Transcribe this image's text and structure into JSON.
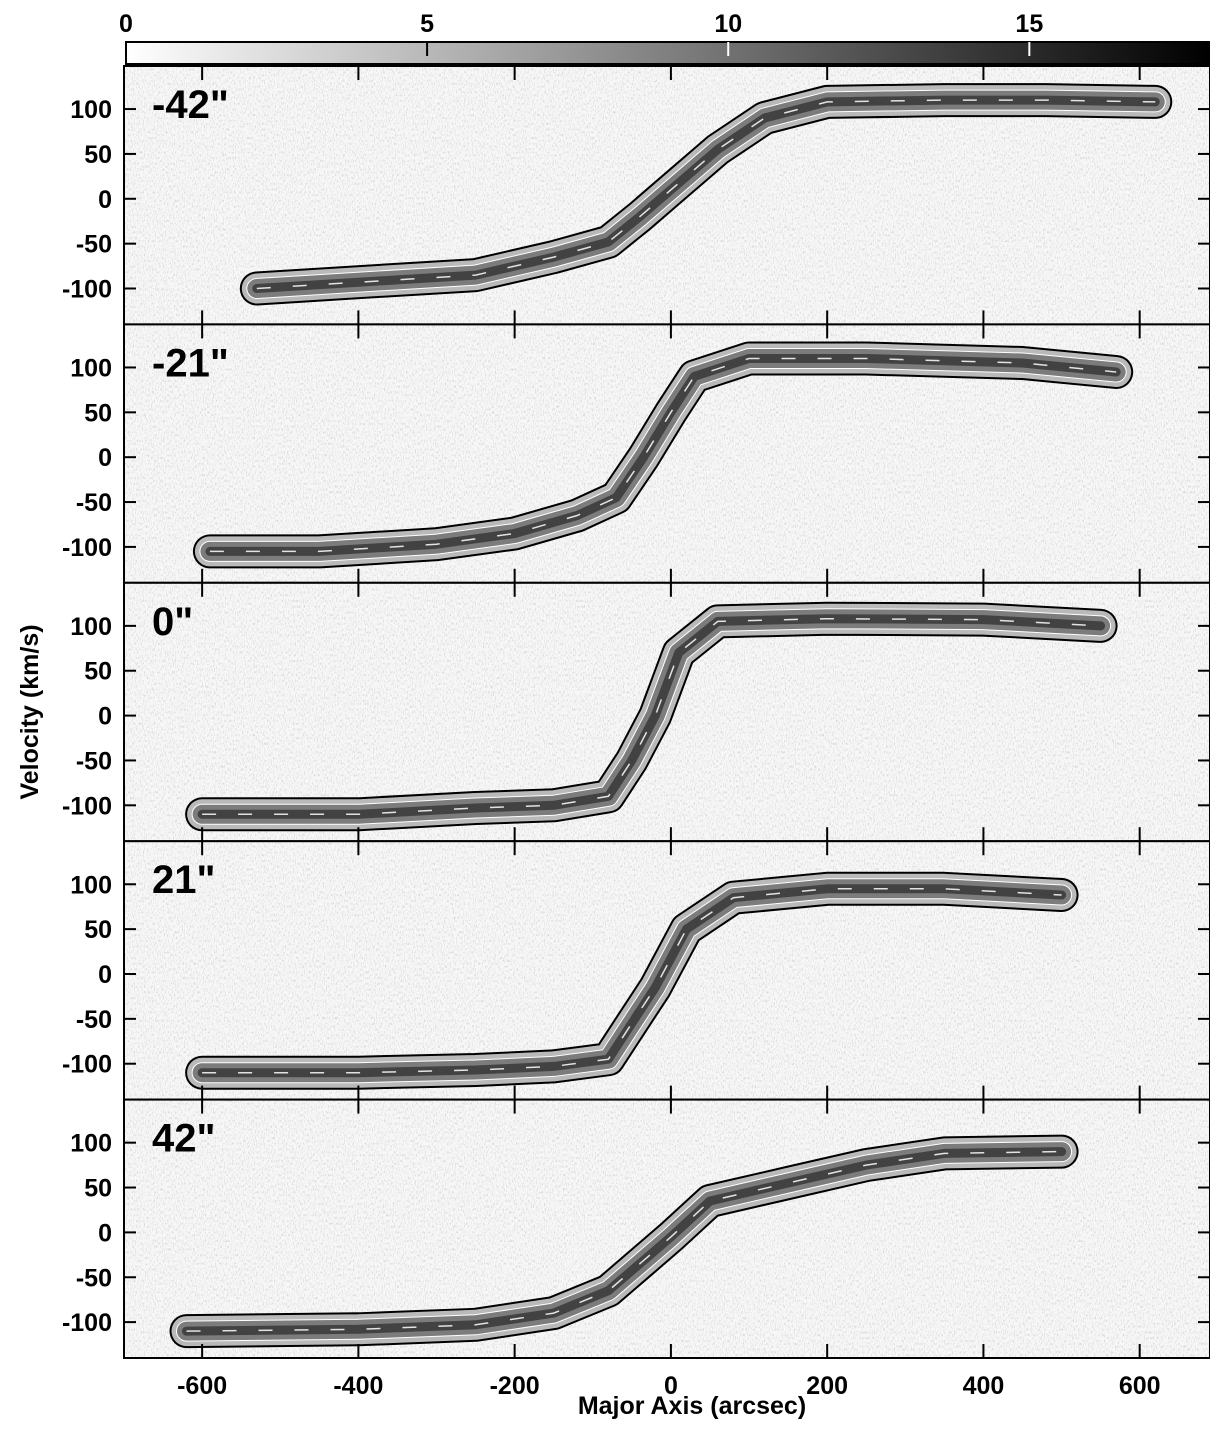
{
  "chart_data": {
    "type": "heatmap",
    "xlabel": "Major Axis (arcsec)",
    "ylabel": "Velocity (km/s)",
    "xlim": [
      -700,
      690
    ],
    "ylim": [
      -140,
      148
    ],
    "x_ticks": [
      -600,
      -400,
      -200,
      0,
      200,
      400,
      600
    ],
    "y_ticks": [
      100,
      50,
      0,
      -50,
      -100
    ],
    "colorbar": {
      "ticks": [
        0,
        5,
        10,
        15
      ],
      "range": [
        0,
        18
      ],
      "colormap": "grayscale (white to black)",
      "position": "top"
    },
    "contours": true,
    "panels": [
      {
        "label": "-42\"",
        "curve": [
          [
            -530,
            -100
          ],
          [
            -400,
            -93
          ],
          [
            -250,
            -85
          ],
          [
            -150,
            -65
          ],
          [
            -80,
            -48
          ],
          [
            -40,
            -20
          ],
          [
            0,
            10
          ],
          [
            60,
            55
          ],
          [
            120,
            90
          ],
          [
            200,
            108
          ],
          [
            350,
            110
          ],
          [
            480,
            110
          ],
          [
            620,
            108
          ]
        ]
      },
      {
        "label": "-21\"",
        "curve": [
          [
            -590,
            -105
          ],
          [
            -450,
            -105
          ],
          [
            -300,
            -97
          ],
          [
            -200,
            -85
          ],
          [
            -120,
            -65
          ],
          [
            -70,
            -45
          ],
          [
            -35,
            0
          ],
          [
            0,
            50
          ],
          [
            30,
            90
          ],
          [
            100,
            110
          ],
          [
            250,
            110
          ],
          [
            450,
            105
          ],
          [
            570,
            95
          ]
        ]
      },
      {
        "label": "0\"",
        "curve": [
          [
            -600,
            -110
          ],
          [
            -400,
            -110
          ],
          [
            -250,
            -103
          ],
          [
            -150,
            -100
          ],
          [
            -80,
            -90
          ],
          [
            -50,
            -50
          ],
          [
            -20,
            0
          ],
          [
            10,
            70
          ],
          [
            60,
            105
          ],
          [
            200,
            108
          ],
          [
            400,
            107
          ],
          [
            550,
            100
          ]
        ]
      },
      {
        "label": "21\"",
        "curve": [
          [
            -600,
            -110
          ],
          [
            -400,
            -110
          ],
          [
            -250,
            -107
          ],
          [
            -150,
            -103
          ],
          [
            -80,
            -95
          ],
          [
            -50,
            -55
          ],
          [
            -20,
            -15
          ],
          [
            20,
            50
          ],
          [
            80,
            85
          ],
          [
            200,
            95
          ],
          [
            350,
            95
          ],
          [
            500,
            88
          ]
        ]
      },
      {
        "label": "42\"",
        "curve": [
          [
            -620,
            -110
          ],
          [
            -400,
            -108
          ],
          [
            -250,
            -103
          ],
          [
            -150,
            -90
          ],
          [
            -80,
            -65
          ],
          [
            -40,
            -35
          ],
          [
            0,
            -5
          ],
          [
            50,
            35
          ],
          [
            150,
            55
          ],
          [
            250,
            75
          ],
          [
            350,
            88
          ],
          [
            500,
            90
          ]
        ]
      }
    ]
  }
}
